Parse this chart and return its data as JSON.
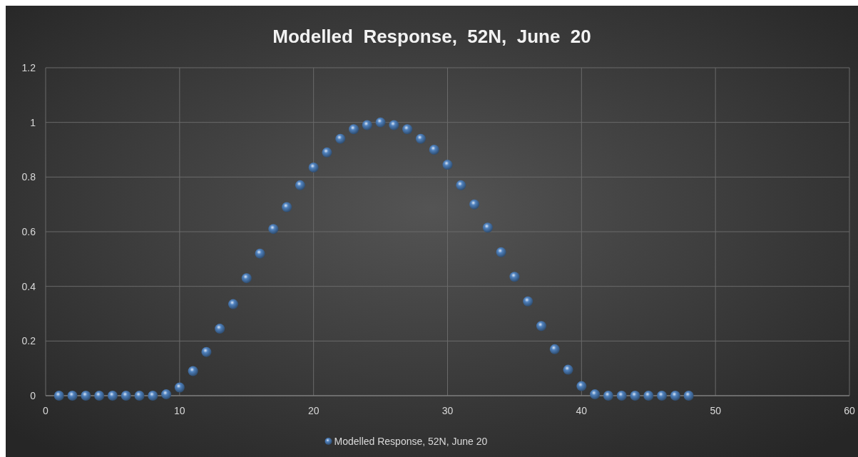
{
  "chart_data": {
    "type": "scatter",
    "title": "Modelled  Response,  52N,  June  20",
    "x": [
      1,
      2,
      3,
      4,
      5,
      6,
      7,
      8,
      9,
      10,
      11,
      12,
      13,
      14,
      15,
      16,
      17,
      18,
      19,
      20,
      21,
      22,
      23,
      24,
      25,
      26,
      27,
      28,
      29,
      30,
      31,
      32,
      33,
      34,
      35,
      36,
      37,
      38,
      39,
      40,
      41,
      42,
      43,
      44,
      45,
      46,
      47,
      48
    ],
    "series": [
      {
        "name": "Modelled Response, 52N, June 20",
        "color": "#4f81bd",
        "values": [
          0,
          0,
          0,
          0,
          0,
          0,
          0,
          0,
          0.005,
          0.03,
          0.09,
          0.16,
          0.245,
          0.335,
          0.43,
          0.52,
          0.61,
          0.69,
          0.77,
          0.835,
          0.89,
          0.94,
          0.975,
          0.99,
          1,
          0.99,
          0.975,
          0.94,
          0.9,
          0.845,
          0.77,
          0.7,
          0.615,
          0.525,
          0.435,
          0.345,
          0.255,
          0.17,
          0.095,
          0.035,
          0.005,
          0,
          0,
          0,
          0,
          0,
          0,
          0
        ]
      }
    ],
    "xlim": [
      0,
      60
    ],
    "xticks": [
      0,
      10,
      20,
      30,
      40,
      50,
      60
    ],
    "ylim": [
      0,
      1.2
    ],
    "yticks": [
      0,
      {
        "value": 0.2,
        "label": "0.2"
      },
      {
        "value": 0.4,
        "label": "0.4"
      },
      {
        "value": 0.6,
        "label": "0.6"
      },
      {
        "value": 0.8,
        "label": "0.8"
      },
      1,
      {
        "value": 1.2,
        "label": "1.2"
      }
    ],
    "grid": true,
    "legend": "bottom",
    "marker": "circle"
  }
}
